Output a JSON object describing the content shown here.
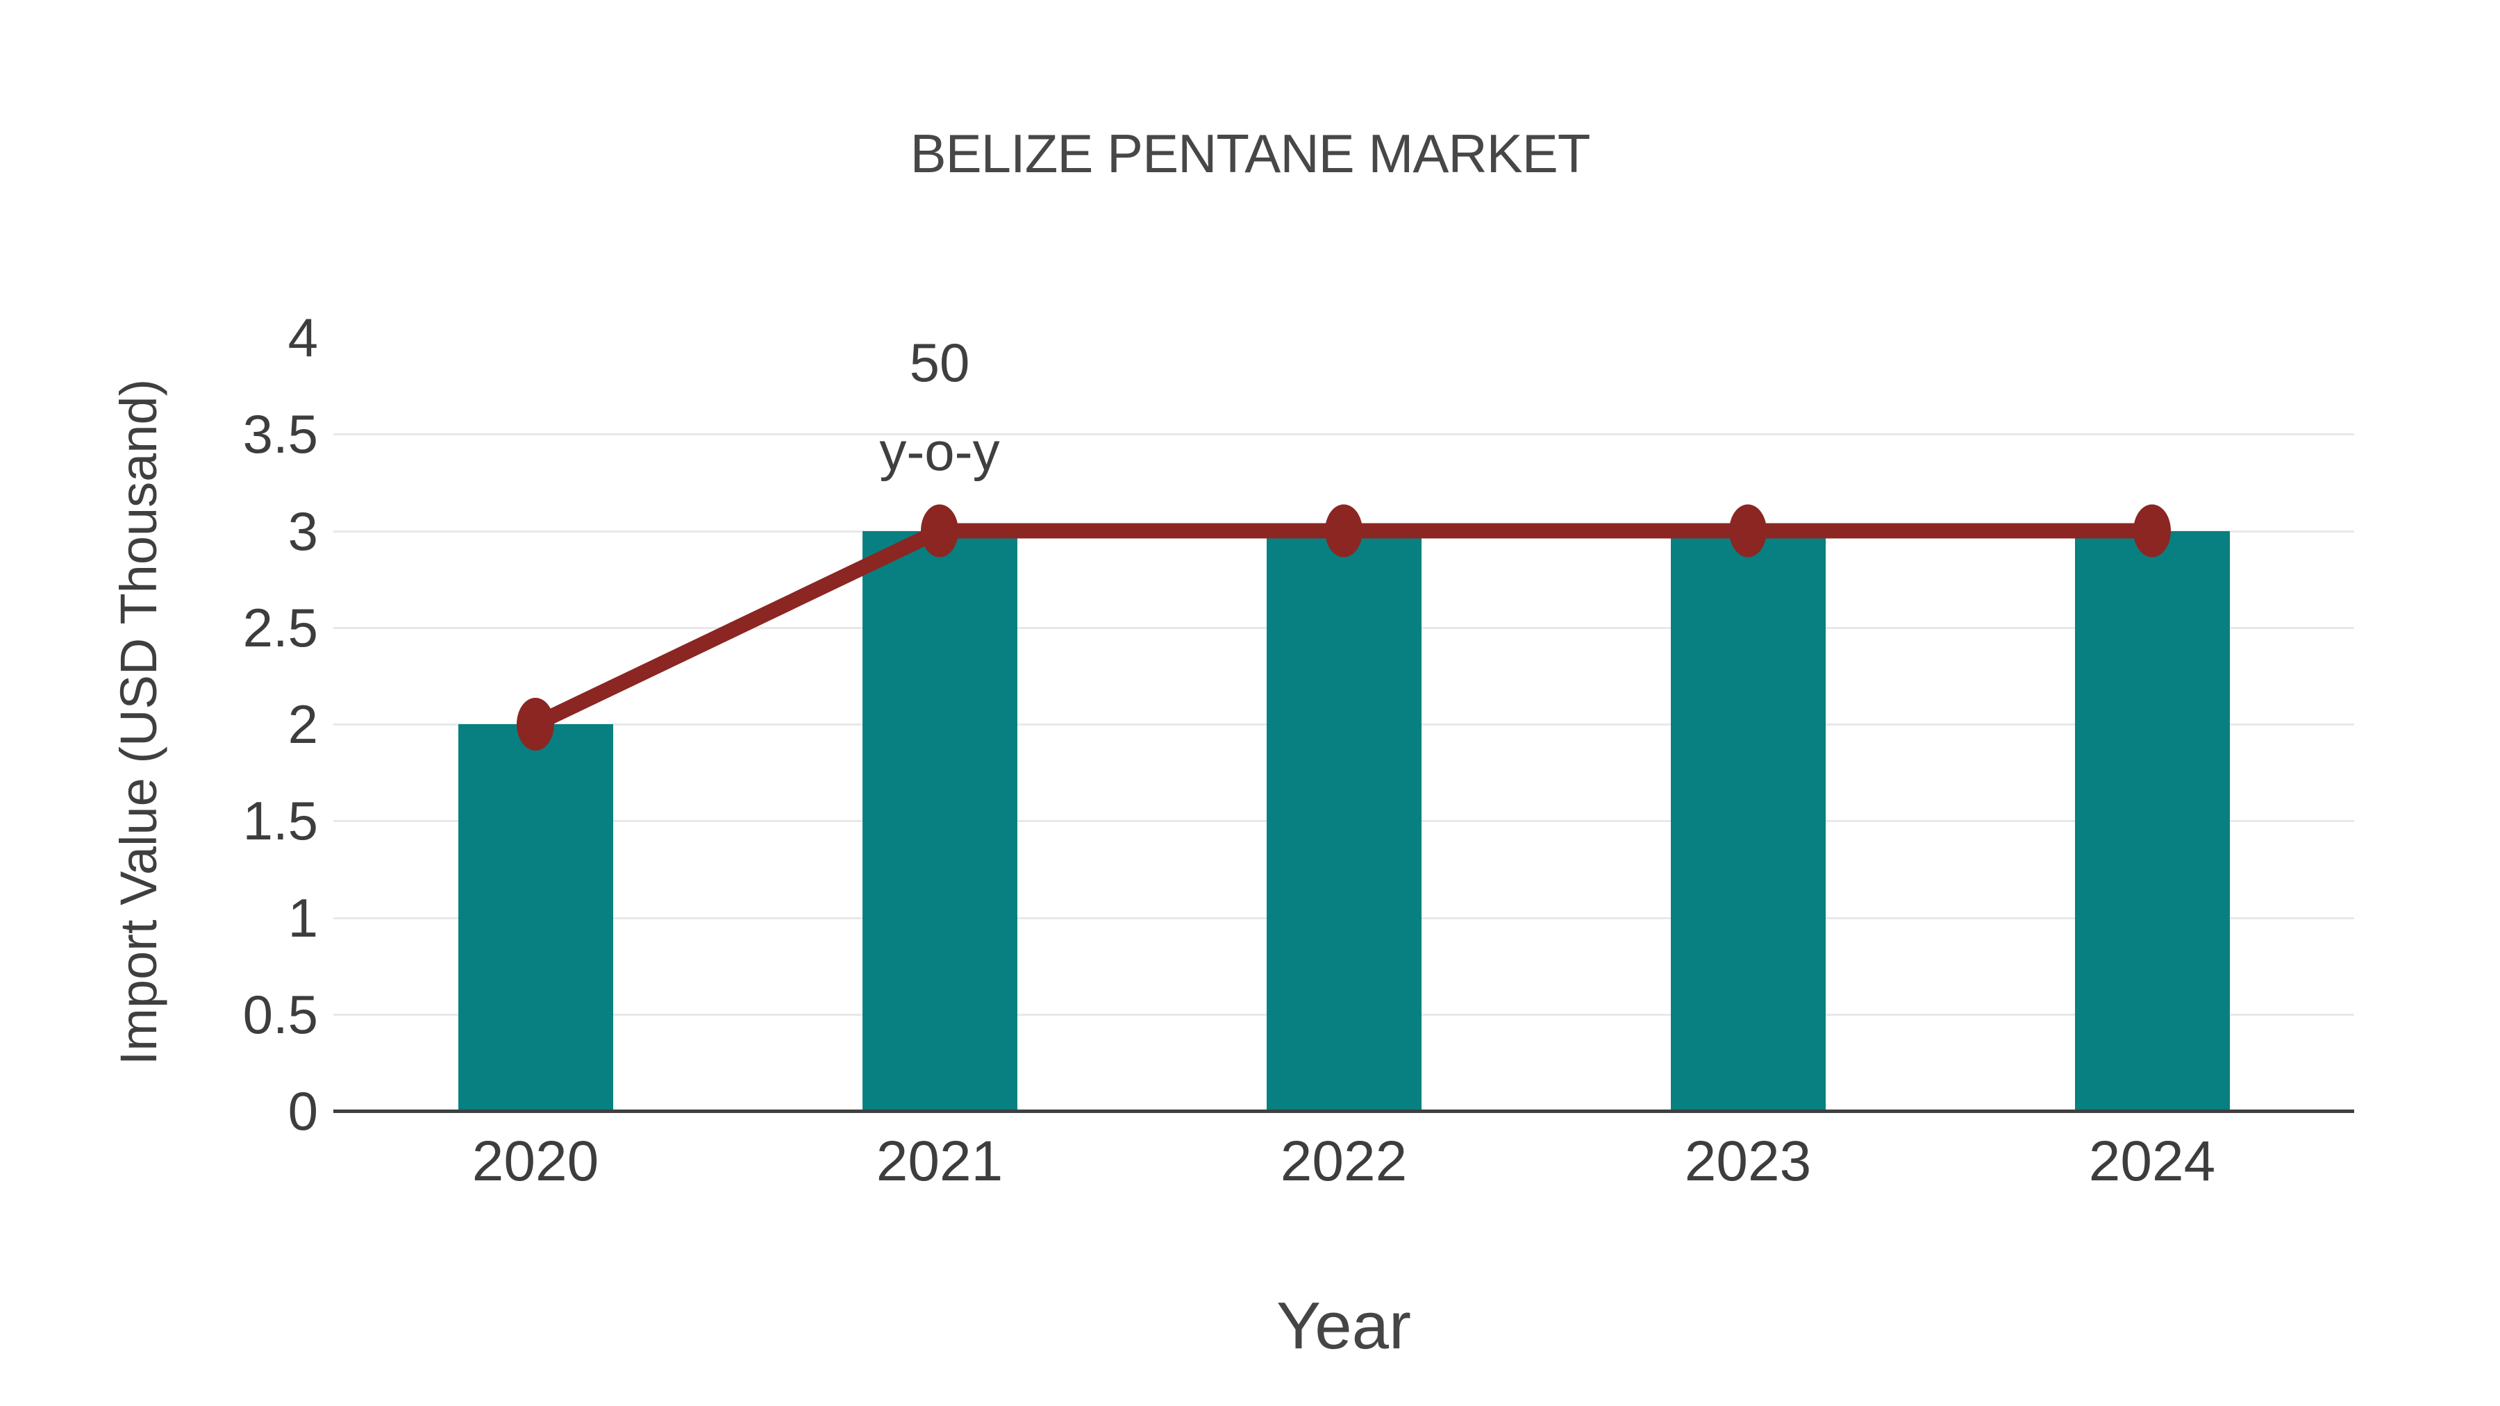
{
  "header": {
    "title": "BELIZE PENTANE MARKET"
  },
  "chart_data": {
    "type": "bar",
    "categories": [
      "2020",
      "2021",
      "2022",
      "2023",
      "2024"
    ],
    "series": [
      {
        "name": "Import Value bars",
        "type": "bar",
        "values": [
          2,
          3,
          3,
          3,
          3
        ]
      },
      {
        "name": "Import Value trend line",
        "type": "line",
        "values": [
          2,
          3,
          3,
          3,
          3
        ]
      }
    ],
    "title": "BELIZE PENTANE MARKET",
    "xlabel": "Year",
    "ylabel": "Import Value (USD Thousand)",
    "ylim": [
      0,
      4
    ],
    "yticks": [
      0,
      0.5,
      1,
      1.5,
      2,
      2.5,
      3,
      3.5,
      4
    ],
    "ytick_labels": [
      "0",
      "0.5",
      "1",
      "1.5",
      "2",
      "2.5",
      "3",
      "3.5",
      "4"
    ],
    "grid": true,
    "legend_position": "none",
    "annotation": {
      "line1": "50",
      "line2": "y-o-y",
      "target_category": "2021"
    },
    "colors": {
      "bar": "#088081",
      "line": "#8B2623",
      "grid": "#e8e8e8",
      "axis": "#3f3f3f",
      "text": "#3d3d3d"
    }
  }
}
